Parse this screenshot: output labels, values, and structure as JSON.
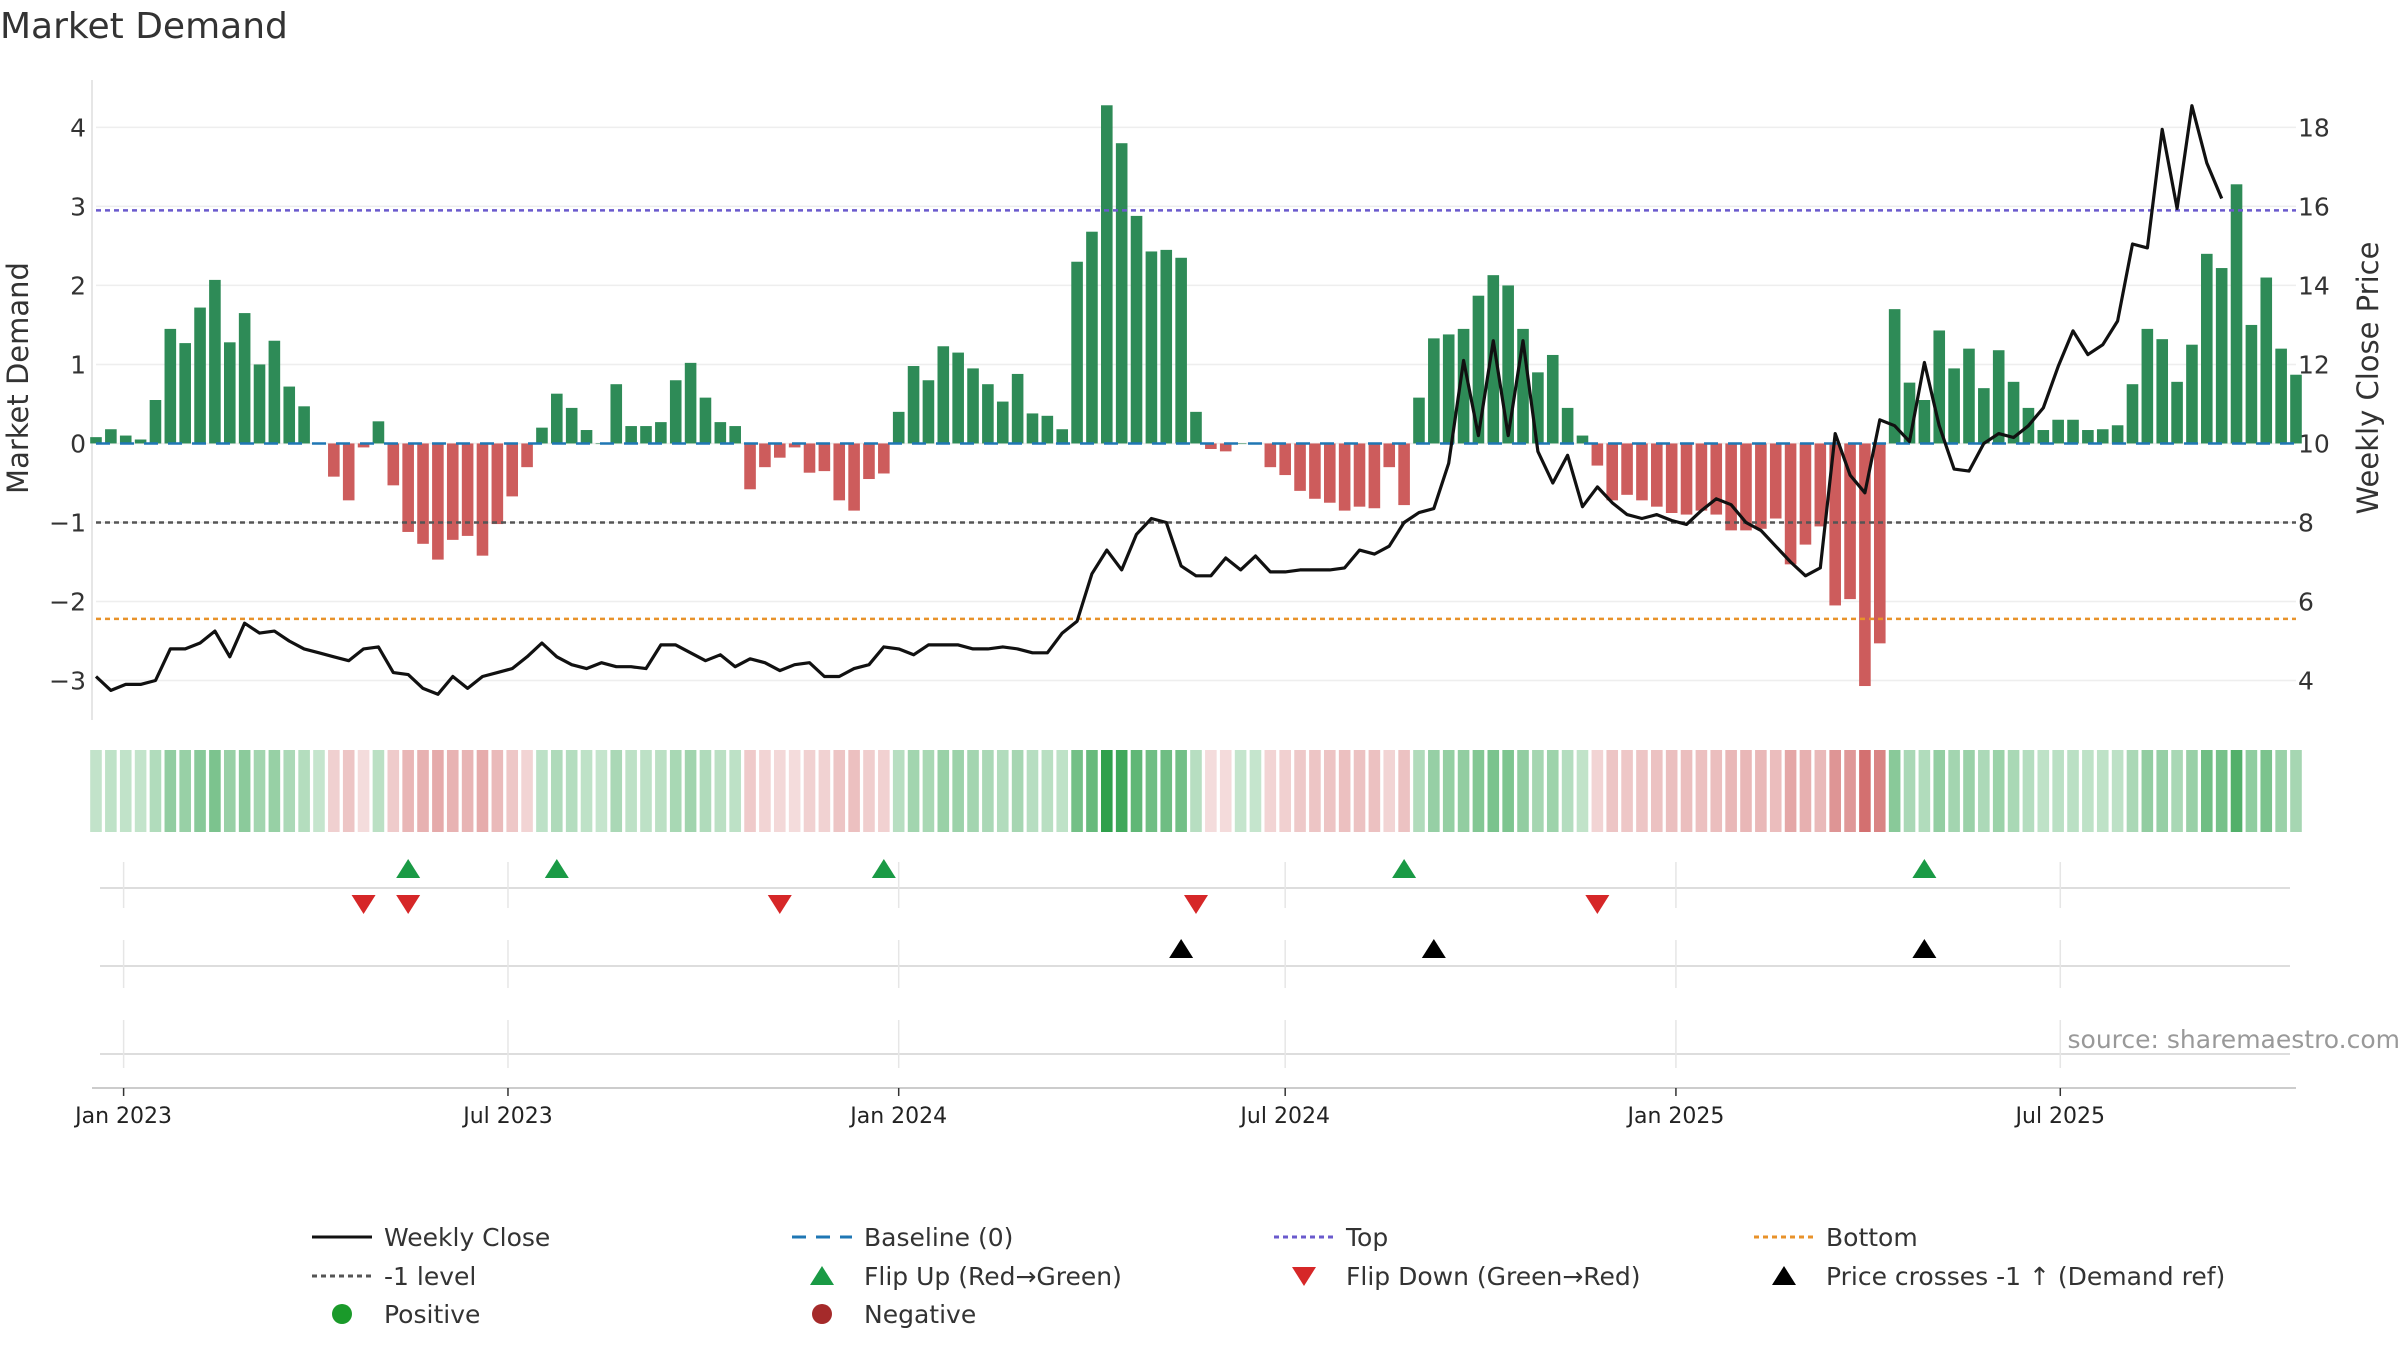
{
  "chart_data": {
    "type": "bar",
    "title": "Market Demand",
    "ylabel": "Market Demand",
    "y2label": "Weekly Close Price",
    "ylim": [
      -3.5,
      4.6
    ],
    "y2lim": [
      3,
      19.2
    ],
    "xlim": [
      "2022-12-19",
      "2025-10-20"
    ],
    "y_ticks": [
      4,
      3,
      2,
      1,
      0,
      -1,
      -2,
      -3
    ],
    "y_tick_labels": [
      "4",
      "3",
      "2",
      "1",
      "0",
      "−1",
      "−2",
      "−3"
    ],
    "y2_ticks": [
      18,
      16,
      14,
      12,
      10,
      8,
      6,
      4
    ],
    "y2_tick_labels": [
      "18",
      "16",
      "14",
      "12",
      "10",
      "8",
      "6",
      "4"
    ],
    "x_ticks": [
      "2023-01-01",
      "2023-07-01",
      "2024-01-01",
      "2024-07-01",
      "2025-01-01",
      "2025-07-01"
    ],
    "x_tick_labels": [
      "Jan 2023",
      "Jul 2023",
      "Jan 2024",
      "Jul 2024",
      "Jan 2025",
      "Jul 2025"
    ],
    "levels": {
      "top": 2.95,
      "bottom": -2.22,
      "minus_one": -1,
      "baseline": 0
    },
    "start_date": "2022-12-19",
    "week_step_days": 7,
    "demand": [
      0.08,
      0.18,
      0.1,
      0.05,
      0.55,
      1.45,
      1.27,
      1.72,
      2.07,
      1.28,
      1.65,
      1.0,
      1.3,
      0.72,
      0.47,
      0.0,
      -0.42,
      -0.72,
      -0.05,
      0.28,
      -0.53,
      -1.12,
      -1.27,
      -1.47,
      -1.22,
      -1.17,
      -1.42,
      -1.02,
      -0.67,
      -0.3,
      0.2,
      0.63,
      0.45,
      0.17,
      0.0,
      0.75,
      0.22,
      0.22,
      0.27,
      0.8,
      1.02,
      0.58,
      0.27,
      0.22,
      -0.58,
      -0.3,
      -0.18,
      -0.05,
      -0.37,
      -0.35,
      -0.72,
      -0.85,
      -0.45,
      -0.38,
      0.4,
      0.98,
      0.8,
      1.23,
      1.15,
      0.95,
      0.75,
      0.53,
      0.88,
      0.38,
      0.35,
      0.18,
      2.3,
      2.68,
      4.28,
      3.8,
      2.88,
      2.43,
      2.45,
      2.35,
      0.4,
      -0.07,
      -0.1,
      0.0,
      0.0,
      -0.3,
      -0.4,
      -0.6,
      -0.7,
      -0.75,
      -0.85,
      -0.8,
      -0.82,
      -0.3,
      -0.78,
      0.58,
      1.33,
      1.38,
      1.45,
      1.87,
      2.13,
      2.0,
      1.45,
      0.9,
      1.12,
      0.45,
      0.1,
      -0.28,
      -0.72,
      -0.65,
      -0.72,
      -0.8,
      -0.88,
      -0.9,
      -0.85,
      -0.9,
      -1.1,
      -1.1,
      -1.08,
      -0.95,
      -1.53,
      -1.28,
      -1.05,
      -2.05,
      -1.97,
      -3.07,
      -2.53,
      1.7,
      0.77,
      0.55,
      1.43,
      0.95,
      1.2,
      0.7,
      1.18,
      0.78,
      0.45,
      0.17,
      0.3,
      0.3,
      0.17,
      0.18,
      0.23,
      0.75,
      1.45,
      1.32,
      0.78,
      1.25,
      2.4,
      2.22,
      3.28,
      1.5,
      2.1,
      1.2,
      0.87
    ],
    "price": [
      4.1,
      3.75,
      3.9,
      3.9,
      4.0,
      4.8,
      4.8,
      4.95,
      5.25,
      4.6,
      5.45,
      5.2,
      5.25,
      5.0,
      4.8,
      4.7,
      4.6,
      4.5,
      4.8,
      4.85,
      4.2,
      4.15,
      3.8,
      3.65,
      4.1,
      3.8,
      4.1,
      4.2,
      4.3,
      4.6,
      4.95,
      4.6,
      4.4,
      4.3,
      4.45,
      4.35,
      4.35,
      4.3,
      4.9,
      4.9,
      4.7,
      4.5,
      4.65,
      4.35,
      4.55,
      4.45,
      4.25,
      4.4,
      4.45,
      4.1,
      4.1,
      4.3,
      4.4,
      4.85,
      4.8,
      4.65,
      4.9,
      4.9,
      4.9,
      4.8,
      4.8,
      4.85,
      4.8,
      4.7,
      4.7,
      5.2,
      5.5,
      6.7,
      7.3,
      6.8,
      7.7,
      8.1,
      8.0,
      6.9,
      6.65,
      6.65,
      7.1,
      6.8,
      7.15,
      6.75,
      6.75,
      6.8,
      6.8,
      6.8,
      6.85,
      7.3,
      7.2,
      7.4,
      8.0,
      8.25,
      8.35,
      9.5,
      12.1,
      10.2,
      12.6,
      10.2,
      12.6,
      9.8,
      9.0,
      9.7,
      8.4,
      8.9,
      8.5,
      8.2,
      8.1,
      8.2,
      8.05,
      7.95,
      8.3,
      8.6,
      8.45,
      8.0,
      7.8,
      7.4,
      7.0,
      6.65,
      6.85,
      10.25,
      9.2,
      8.75,
      10.6,
      10.45,
      10.05,
      12.05,
      10.45,
      9.35,
      9.3,
      10.0,
      10.25,
      10.15,
      10.45,
      10.9,
      11.95,
      12.85,
      12.25,
      12.5,
      13.1,
      15.05,
      14.95,
      17.95,
      15.95,
      18.55,
      17.1,
      16.2
    ],
    "heat_strip": [
      0.08,
      0.18,
      0.1,
      0.05,
      0.55,
      1.45,
      1.27,
      1.72,
      2.07,
      1.28,
      1.65,
      1.0,
      1.3,
      0.72,
      0.47,
      0.0,
      -0.42,
      -0.72,
      -0.05,
      0.28,
      -0.53,
      -1.12,
      -1.27,
      -1.47,
      -1.22,
      -1.17,
      -1.42,
      -1.02,
      -0.67,
      -0.3,
      0.2,
      0.63,
      0.45,
      0.17,
      0.0,
      0.75,
      0.22,
      0.22,
      0.27,
      0.8,
      1.02,
      0.58,
      0.27,
      0.22,
      -0.58,
      -0.3,
      -0.18,
      -0.05,
      -0.37,
      -0.35,
      -0.72,
      -0.85,
      -0.45,
      -0.38,
      0.4,
      0.98,
      0.8,
      1.23,
      1.15,
      0.95,
      0.75,
      0.53,
      0.88,
      0.38,
      0.35,
      0.18,
      2.3,
      2.68,
      4.28,
      3.8,
      2.88,
      2.43,
      2.45,
      2.35,
      0.4,
      -0.07,
      -0.1,
      0.0,
      0.0,
      -0.3,
      -0.4,
      -0.6,
      -0.7,
      -0.75,
      -0.85,
      -0.8,
      -0.82,
      -0.3,
      -0.78,
      0.58,
      1.33,
      1.38,
      1.45,
      1.87,
      2.13,
      2.0,
      1.45,
      0.9,
      1.12,
      0.45,
      0.1,
      -0.28,
      -0.72,
      -0.65,
      -0.72,
      -0.8,
      -0.88,
      -0.9,
      -0.85,
      -0.9,
      -1.1,
      -1.1,
      -1.08,
      -0.95,
      -1.53,
      -1.28,
      -1.05,
      -2.05,
      -1.97,
      -3.07,
      -2.53,
      1.7,
      0.77,
      0.55,
      1.43,
      0.95,
      1.2,
      0.7,
      1.18,
      0.78,
      0.45,
      0.17,
      0.3,
      0.3,
      0.17,
      0.18,
      0.23,
      0.75,
      1.45,
      1.32,
      0.78,
      1.25,
      2.4,
      2.22,
      3.28,
      1.5,
      2.1,
      1.2,
      0.87
    ],
    "flip_up_dates": [
      "2023-05-15",
      "2023-07-24",
      "2023-12-25",
      "2024-08-26",
      "2025-04-28"
    ],
    "flip_down_dates": [
      "2023-04-24",
      "2023-05-15",
      "2023-11-06",
      "2024-05-20",
      "2024-11-25"
    ],
    "price_cross_dates": [
      "2024-05-13",
      "2024-09-09",
      "2025-04-28"
    ],
    "source": "source: sharemaestro.com",
    "colors": {
      "positive": "#2e8b57",
      "negative": "#cd5c5c",
      "price": "#111111",
      "baseline": "#1f77b4",
      "top": "#6a5acd",
      "bottom": "#e8922a",
      "minus_one": "#555555",
      "flip_up": "#1a9a45",
      "flip_down": "#d62728",
      "cross": "#000000",
      "pos_dot": "#1a9a2a",
      "neg_dot": "#a52a2a"
    },
    "legend": [
      {
        "label": "Weekly Close",
        "kind": "line",
        "color": "#111111"
      },
      {
        "label": "Baseline (0)",
        "kind": "dashed",
        "color": "#1f77b4"
      },
      {
        "label": "Top",
        "kind": "dotted",
        "color": "#6a5acd"
      },
      {
        "label": "Bottom",
        "kind": "dotted",
        "color": "#e8922a"
      },
      {
        "label": "-1 level",
        "kind": "dotted",
        "color": "#555555"
      },
      {
        "label": "Flip Up (Red→Green)",
        "kind": "tri-up",
        "color": "#1a9a45"
      },
      {
        "label": "Flip Down (Green→Red)",
        "kind": "tri-down",
        "color": "#d62728"
      },
      {
        "label": "Price crosses -1 ↑ (Demand ref)",
        "kind": "tri-up",
        "color": "#000000"
      },
      {
        "label": "Positive",
        "kind": "dot",
        "color": "#1a9a2a"
      },
      {
        "label": "Negative",
        "kind": "dot",
        "color": "#a52a2a"
      }
    ]
  }
}
